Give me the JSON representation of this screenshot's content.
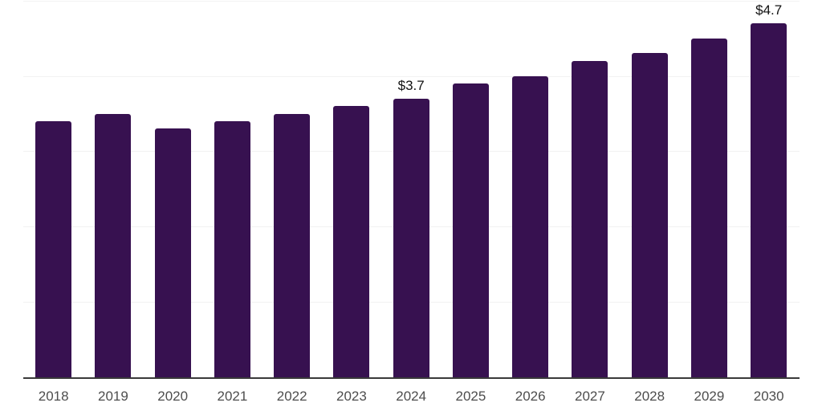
{
  "chart_data": {
    "type": "bar",
    "title": "",
    "xlabel": "",
    "ylabel": "",
    "categories": [
      "2018",
      "2019",
      "2020",
      "2021",
      "2022",
      "2023",
      "2024",
      "2025",
      "2026",
      "2027",
      "2028",
      "2029",
      "2030"
    ],
    "values": [
      3.4,
      3.5,
      3.3,
      3.4,
      3.5,
      3.6,
      3.7,
      3.9,
      4.0,
      4.2,
      4.3,
      4.5,
      4.7
    ],
    "value_labels": [
      {
        "category": "2024",
        "text": "$3.7"
      },
      {
        "category": "2030",
        "text": "$4.7"
      }
    ],
    "ylim": [
      0,
      5
    ],
    "gridline_values": [
      1,
      2,
      3,
      4,
      5
    ],
    "grid": "horizontal",
    "legend": "none",
    "colors": {
      "bar": "#371150",
      "axis": "#3a3a3a",
      "gridline": "#f2f2f2",
      "tick_label": "#4d4d4d",
      "value_label": "#111111",
      "background": "#ffffff"
    }
  }
}
